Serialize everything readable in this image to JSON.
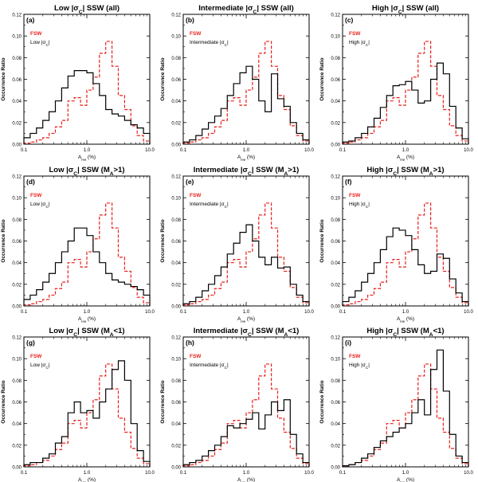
{
  "chart_data": [
    {
      "type": "line",
      "panel_label": "(a)",
      "title": "Low |σC| SSW (all)",
      "xlabel": "AHe (%)",
      "ylabel": "Occurrence Ratio",
      "xscale": "log",
      "xlim": [
        0.1,
        10.0
      ],
      "ylim": [
        0.0,
        0.12
      ],
      "xticks": [
        "0.1",
        "1.0",
        "10.0"
      ],
      "yticks": [
        "0.00",
        "0.02",
        "0.04",
        "0.06",
        "0.08",
        "0.10",
        "0.12"
      ],
      "bin_edges": [
        0.1,
        0.1259,
        0.1585,
        0.1995,
        0.2512,
        0.3162,
        0.3981,
        0.5012,
        0.631,
        0.7943,
        1.0,
        1.2589,
        1.5849,
        1.9953,
        2.5119,
        3.1623,
        3.9811,
        5.0119,
        6.3096,
        7.9433,
        10.0
      ],
      "legend": [
        "FSW",
        "Low |σC|"
      ],
      "series": [
        {
          "name": "FSW",
          "style": "dashed",
          "color": "#e8211a",
          "values": [
            0.001,
            0.002,
            0.004,
            0.006,
            0.01,
            0.016,
            0.022,
            0.04,
            0.043,
            0.036,
            0.05,
            0.062,
            0.084,
            0.095,
            0.072,
            0.045,
            0.032,
            0.017,
            0.008,
            0.003
          ]
        },
        {
          "name": "Low |σC|",
          "style": "solid",
          "color": "#000000",
          "values": [
            0.006,
            0.01,
            0.015,
            0.022,
            0.03,
            0.04,
            0.052,
            0.063,
            0.068,
            0.068,
            0.066,
            0.056,
            0.045,
            0.032,
            0.028,
            0.026,
            0.022,
            0.018,
            0.015,
            0.01
          ]
        }
      ]
    },
    {
      "type": "line",
      "panel_label": "(b)",
      "title": "Intermediate |σC| SSW (all)",
      "xlabel": "AHe (%)",
      "ylabel": "Occurrence Ratio",
      "xscale": "log",
      "xlim": [
        0.1,
        10.0
      ],
      "ylim": [
        0.0,
        0.12
      ],
      "xticks": [
        "0.1",
        "1.0",
        "10.0"
      ],
      "yticks": [
        "0.00",
        "0.02",
        "0.04",
        "0.06",
        "0.08",
        "0.10",
        "0.12"
      ],
      "bin_edges": [
        0.1,
        0.1259,
        0.1585,
        0.1995,
        0.2512,
        0.3162,
        0.3981,
        0.5012,
        0.631,
        0.7943,
        1.0,
        1.2589,
        1.5849,
        1.9953,
        2.5119,
        3.1623,
        3.9811,
        5.0119,
        6.3096,
        7.9433,
        10.0
      ],
      "legend": [
        "FSW",
        "Intermediate |σC|"
      ],
      "series": [
        {
          "name": "FSW",
          "style": "dashed",
          "color": "#e8211a",
          "values": [
            0.001,
            0.002,
            0.004,
            0.006,
            0.01,
            0.016,
            0.022,
            0.04,
            0.043,
            0.036,
            0.05,
            0.062,
            0.084,
            0.095,
            0.072,
            0.045,
            0.032,
            0.017,
            0.008,
            0.003
          ]
        },
        {
          "name": "Intermediate |σC|",
          "style": "solid",
          "color": "#000000",
          "values": [
            0.002,
            0.004,
            0.008,
            0.014,
            0.02,
            0.026,
            0.033,
            0.045,
            0.056,
            0.066,
            0.072,
            0.06,
            0.04,
            0.03,
            0.065,
            0.042,
            0.035,
            0.02,
            0.01,
            0.004
          ]
        }
      ]
    },
    {
      "type": "line",
      "panel_label": "(c)",
      "title": "High |σC| SSW (all)",
      "xlabel": "AHe (%)",
      "ylabel": "Occurrence Ratio",
      "xscale": "log",
      "xlim": [
        0.1,
        10.0
      ],
      "ylim": [
        0.0,
        0.12
      ],
      "xticks": [
        "0.1",
        "1.0",
        "10.0"
      ],
      "yticks": [
        "0.00",
        "0.02",
        "0.04",
        "0.06",
        "0.08",
        "0.10",
        "0.12"
      ],
      "bin_edges": [
        0.1,
        0.1259,
        0.1585,
        0.1995,
        0.2512,
        0.3162,
        0.3981,
        0.5012,
        0.631,
        0.7943,
        1.0,
        1.2589,
        1.5849,
        1.9953,
        2.5119,
        3.1623,
        3.9811,
        5.0119,
        6.3096,
        7.9433,
        10.0
      ],
      "legend": [
        "FSW",
        "High |σC|"
      ],
      "series": [
        {
          "name": "FSW",
          "style": "dashed",
          "color": "#e8211a",
          "values": [
            0.001,
            0.002,
            0.004,
            0.006,
            0.01,
            0.016,
            0.022,
            0.04,
            0.043,
            0.036,
            0.05,
            0.062,
            0.084,
            0.095,
            0.072,
            0.045,
            0.032,
            0.017,
            0.008,
            0.003
          ]
        },
        {
          "name": "High |σC|",
          "style": "solid",
          "color": "#000000",
          "values": [
            0.002,
            0.003,
            0.006,
            0.01,
            0.016,
            0.024,
            0.034,
            0.045,
            0.054,
            0.055,
            0.058,
            0.05,
            0.038,
            0.04,
            0.06,
            0.075,
            0.065,
            0.035,
            0.015,
            0.005
          ]
        }
      ]
    },
    {
      "type": "line",
      "panel_label": "(d)",
      "title": "Low |σC| SSW (MA>1)",
      "xlabel": "AHe (%)",
      "ylabel": "Occurrence Ratio",
      "xscale": "log",
      "xlim": [
        0.1,
        10.0
      ],
      "ylim": [
        0.0,
        0.12
      ],
      "xticks": [
        "0.1",
        "1.0",
        "10.0"
      ],
      "yticks": [
        "0.00",
        "0.02",
        "0.04",
        "0.06",
        "0.08",
        "0.10",
        "0.12"
      ],
      "bin_edges": [
        0.1,
        0.1259,
        0.1585,
        0.1995,
        0.2512,
        0.3162,
        0.3981,
        0.5012,
        0.631,
        0.7943,
        1.0,
        1.2589,
        1.5849,
        1.9953,
        2.5119,
        3.1623,
        3.9811,
        5.0119,
        6.3096,
        7.9433,
        10.0
      ],
      "legend": [
        "FSW",
        "Low |σC|"
      ],
      "series": [
        {
          "name": "FSW",
          "style": "dashed",
          "color": "#e8211a",
          "values": [
            0.001,
            0.002,
            0.004,
            0.006,
            0.01,
            0.016,
            0.022,
            0.04,
            0.043,
            0.036,
            0.05,
            0.062,
            0.084,
            0.095,
            0.072,
            0.045,
            0.032,
            0.017,
            0.008,
            0.003
          ]
        },
        {
          "name": "Low |σC|",
          "style": "solid",
          "color": "#000000",
          "values": [
            0.006,
            0.01,
            0.015,
            0.022,
            0.03,
            0.04,
            0.05,
            0.06,
            0.072,
            0.072,
            0.065,
            0.05,
            0.04,
            0.03,
            0.024,
            0.022,
            0.02,
            0.018,
            0.015,
            0.01
          ]
        }
      ]
    },
    {
      "type": "line",
      "panel_label": "(e)",
      "title": "Intermediate |σC| SSW (MA>1)",
      "xlabel": "AHe (%)",
      "ylabel": "Occurrence Ratio",
      "xscale": "log",
      "xlim": [
        0.1,
        10.0
      ],
      "ylim": [
        0.0,
        0.12
      ],
      "xticks": [
        "0.1",
        "1.0",
        "10.0"
      ],
      "yticks": [
        "0.00",
        "0.02",
        "0.04",
        "0.06",
        "0.08",
        "0.10",
        "0.12"
      ],
      "bin_edges": [
        0.1,
        0.1259,
        0.1585,
        0.1995,
        0.2512,
        0.3162,
        0.3981,
        0.5012,
        0.631,
        0.7943,
        1.0,
        1.2589,
        1.5849,
        1.9953,
        2.5119,
        3.1623,
        3.9811,
        5.0119,
        6.3096,
        7.9433,
        10.0
      ],
      "legend": [
        "FSW",
        "Intermediate |σC|"
      ],
      "series": [
        {
          "name": "FSW",
          "style": "dashed",
          "color": "#e8211a",
          "values": [
            0.001,
            0.002,
            0.004,
            0.006,
            0.01,
            0.016,
            0.022,
            0.04,
            0.043,
            0.036,
            0.05,
            0.062,
            0.084,
            0.095,
            0.072,
            0.045,
            0.032,
            0.017,
            0.008,
            0.003
          ]
        },
        {
          "name": "Intermediate |σC|",
          "style": "solid",
          "color": "#000000",
          "values": [
            0.002,
            0.004,
            0.008,
            0.014,
            0.02,
            0.028,
            0.036,
            0.048,
            0.058,
            0.068,
            0.075,
            0.06,
            0.045,
            0.038,
            0.045,
            0.035,
            0.036,
            0.02,
            0.01,
            0.004
          ]
        }
      ]
    },
    {
      "type": "line",
      "panel_label": "(f)",
      "title": "High |σC| SSW (MA>1)",
      "xlabel": "AHe (%)",
      "ylabel": "Occurrence Ratio",
      "xscale": "log",
      "xlim": [
        0.1,
        10.0
      ],
      "ylim": [
        0.0,
        0.12
      ],
      "xticks": [
        "0.1",
        "1.0",
        "10.0"
      ],
      "yticks": [
        "0.00",
        "0.02",
        "0.04",
        "0.06",
        "0.08",
        "0.10",
        "0.12"
      ],
      "bin_edges": [
        0.1,
        0.1259,
        0.1585,
        0.1995,
        0.2512,
        0.3162,
        0.3981,
        0.5012,
        0.631,
        0.7943,
        1.0,
        1.2589,
        1.5849,
        1.9953,
        2.5119,
        3.1623,
        3.9811,
        5.0119,
        6.3096,
        7.9433,
        10.0
      ],
      "legend": [
        "FSW",
        "High |σC|"
      ],
      "series": [
        {
          "name": "FSW",
          "style": "dashed",
          "color": "#e8211a",
          "values": [
            0.001,
            0.002,
            0.004,
            0.006,
            0.01,
            0.016,
            0.022,
            0.04,
            0.043,
            0.036,
            0.05,
            0.062,
            0.084,
            0.095,
            0.072,
            0.045,
            0.032,
            0.017,
            0.008,
            0.003
          ]
        },
        {
          "name": "High |σC|",
          "style": "solid",
          "color": "#000000",
          "values": [
            0.004,
            0.008,
            0.014,
            0.022,
            0.03,
            0.04,
            0.052,
            0.064,
            0.072,
            0.07,
            0.065,
            0.052,
            0.038,
            0.03,
            0.032,
            0.048,
            0.044,
            0.025,
            0.012,
            0.004
          ]
        }
      ]
    },
    {
      "type": "line",
      "panel_label": "(g)",
      "title": "Low |σC| SSW (MA<1)",
      "xlabel": "AHe (%)",
      "ylabel": "Occurrence Ratio",
      "xscale": "log",
      "xlim": [
        0.1,
        10.0
      ],
      "ylim": [
        0.0,
        0.12
      ],
      "xticks": [
        "0.1",
        "1.0",
        "10.0"
      ],
      "yticks": [
        "0.00",
        "0.02",
        "0.04",
        "0.06",
        "0.08",
        "0.10",
        "0.12"
      ],
      "bin_edges": [
        0.1,
        0.1259,
        0.1585,
        0.1995,
        0.2512,
        0.3162,
        0.3981,
        0.5012,
        0.631,
        0.7943,
        1.0,
        1.2589,
        1.5849,
        1.9953,
        2.5119,
        3.1623,
        3.9811,
        5.0119,
        6.3096,
        7.9433,
        10.0
      ],
      "legend": [
        "FSW",
        "Low |σC|"
      ],
      "series": [
        {
          "name": "FSW",
          "style": "dashed",
          "color": "#e8211a",
          "values": [
            0.001,
            0.002,
            0.004,
            0.006,
            0.01,
            0.016,
            0.022,
            0.04,
            0.043,
            0.036,
            0.05,
            0.062,
            0.084,
            0.095,
            0.072,
            0.045,
            0.032,
            0.017,
            0.008,
            0.003
          ]
        },
        {
          "name": "Low |σC|",
          "style": "solid",
          "color": "#000000",
          "values": [
            0.002,
            0.004,
            0.004,
            0.008,
            0.012,
            0.022,
            0.028,
            0.05,
            0.06,
            0.05,
            0.052,
            0.045,
            0.06,
            0.072,
            0.09,
            0.098,
            0.08,
            0.04,
            0.015,
            0.005
          ]
        }
      ]
    },
    {
      "type": "line",
      "panel_label": "(h)",
      "title": "Intermediate |σC| SSW (MA<1)",
      "xlabel": "AHe (%)",
      "ylabel": "Occurrence Ratio",
      "xscale": "log",
      "xlim": [
        0.1,
        10.0
      ],
      "ylim": [
        0.0,
        0.12
      ],
      "xticks": [
        "0.1",
        "1.0",
        "10.0"
      ],
      "yticks": [
        "0.00",
        "0.02",
        "0.04",
        "0.06",
        "0.08",
        "0.10",
        "0.12"
      ],
      "bin_edges": [
        0.1,
        0.1259,
        0.1585,
        0.1995,
        0.2512,
        0.3162,
        0.3981,
        0.5012,
        0.631,
        0.7943,
        1.0,
        1.2589,
        1.5849,
        1.9953,
        2.5119,
        3.1623,
        3.9811,
        5.0119,
        6.3096,
        7.9433,
        10.0
      ],
      "legend": [
        "FSW",
        "Intermediate |σC|"
      ],
      "series": [
        {
          "name": "FSW",
          "style": "dashed",
          "color": "#e8211a",
          "values": [
            0.001,
            0.002,
            0.004,
            0.006,
            0.01,
            0.016,
            0.022,
            0.04,
            0.043,
            0.036,
            0.05,
            0.062,
            0.084,
            0.095,
            0.072,
            0.045,
            0.032,
            0.017,
            0.008,
            0.003
          ]
        },
        {
          "name": "Intermediate |σC|",
          "style": "solid",
          "color": "#000000",
          "values": [
            0.002,
            0.004,
            0.006,
            0.01,
            0.015,
            0.02,
            0.028,
            0.038,
            0.036,
            0.04,
            0.044,
            0.05,
            0.035,
            0.048,
            0.06,
            0.052,
            0.062,
            0.03,
            0.012,
            0.004
          ]
        }
      ]
    },
    {
      "type": "line",
      "panel_label": "(i)",
      "title": "High |σC| SSW (MA<1)",
      "xlabel": "AHe (%)",
      "ylabel": "Occurrence Ratio",
      "xscale": "log",
      "xlim": [
        0.1,
        10.0
      ],
      "ylim": [
        0.0,
        0.12
      ],
      "xticks": [
        "0.1",
        "1.0",
        "10.0"
      ],
      "yticks": [
        "0.00",
        "0.02",
        "0.04",
        "0.06",
        "0.08",
        "0.10",
        "0.12"
      ],
      "bin_edges": [
        0.1,
        0.1259,
        0.1585,
        0.1995,
        0.2512,
        0.3162,
        0.3981,
        0.5012,
        0.631,
        0.7943,
        1.0,
        1.2589,
        1.5849,
        1.9953,
        2.5119,
        3.1623,
        3.9811,
        5.0119,
        6.3096,
        7.9433,
        10.0
      ],
      "legend": [
        "FSW",
        "High |σC|"
      ],
      "series": [
        {
          "name": "FSW",
          "style": "dashed",
          "color": "#e8211a",
          "values": [
            0.001,
            0.002,
            0.004,
            0.006,
            0.01,
            0.016,
            0.022,
            0.04,
            0.043,
            0.036,
            0.05,
            0.062,
            0.084,
            0.095,
            0.072,
            0.045,
            0.032,
            0.017,
            0.008,
            0.003
          ]
        },
        {
          "name": "High |σC|",
          "style": "solid",
          "color": "#000000",
          "values": [
            0.001,
            0.002,
            0.004,
            0.008,
            0.012,
            0.018,
            0.024,
            0.028,
            0.032,
            0.036,
            0.04,
            0.05,
            0.062,
            0.048,
            0.09,
            0.108,
            0.07,
            0.03,
            0.01,
            0.004
          ]
        }
      ]
    }
  ]
}
